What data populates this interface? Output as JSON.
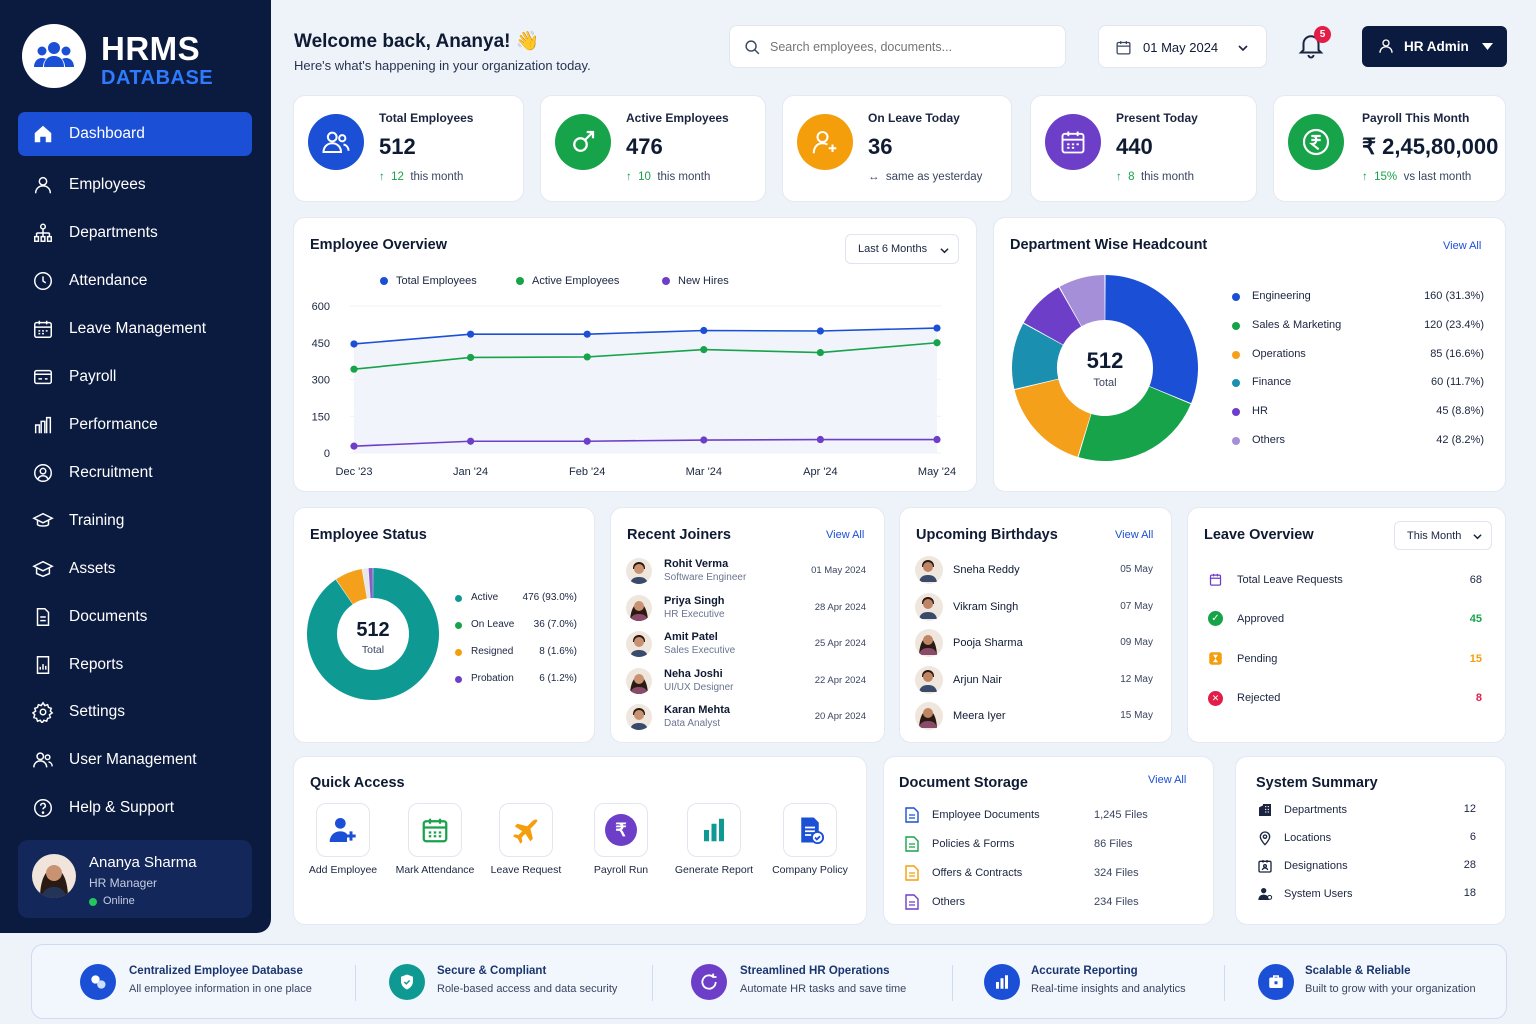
{
  "brand": {
    "title": "HRMS",
    "subtitle": "DATABASE"
  },
  "sidebar": {
    "items": [
      {
        "label": "Dashboard"
      },
      {
        "label": "Employees"
      },
      {
        "label": "Departments"
      },
      {
        "label": "Attendance"
      },
      {
        "label": "Leave Management"
      },
      {
        "label": "Payroll"
      },
      {
        "label": "Performance"
      },
      {
        "label": "Recruitment"
      },
      {
        "label": "Training"
      },
      {
        "label": "Assets"
      },
      {
        "label": "Documents"
      },
      {
        "label": "Reports"
      },
      {
        "label": "Settings"
      },
      {
        "label": "User Management"
      },
      {
        "label": "Help & Support"
      }
    ],
    "profile": {
      "name": "Ananya Sharma",
      "role": "HR Manager",
      "status": "Online"
    }
  },
  "header": {
    "welcome": "Welcome back, Ananya! 👋",
    "subtitle": "Here's what's happening in your organization today.",
    "search_placeholder": "Search employees, documents...",
    "date": "01 May 2024",
    "notifications": "5",
    "user": "HR Admin"
  },
  "stats": [
    {
      "title": "Total Employees",
      "value": "512",
      "delta": "12",
      "note": "this month",
      "color": "#1a4fd6"
    },
    {
      "title": "Active Employees",
      "value": "476",
      "delta": "10",
      "note": "this month",
      "color": "#17a34a"
    },
    {
      "title": "On Leave Today",
      "value": "36",
      "delta": "",
      "note": "same as yesterday",
      "color": "#f59e0b"
    },
    {
      "title": "Present Today",
      "value": "440",
      "delta": "8",
      "note": "this month",
      "color": "#6d3fc9"
    },
    {
      "title": "Payroll This Month",
      "value": "₹ 2,45,80,000",
      "delta": "15%",
      "note": "vs last month",
      "color": "#17a34a"
    }
  ],
  "overview": {
    "title": "Employee Overview",
    "range": "Last 6 Months",
    "legend": [
      "Total Employees",
      "Active Employees",
      "New Hires"
    ]
  },
  "chart_data": [
    {
      "type": "line",
      "title": "Employee Overview",
      "x": [
        "Dec '23",
        "Jan '24",
        "Feb '24",
        "Mar '24",
        "Apr '24",
        "May '24"
      ],
      "ylim": [
        0,
        600
      ],
      "yticks": [
        "600",
        "450",
        "300",
        "150",
        "0"
      ],
      "series": [
        {
          "name": "Total Employees",
          "values": [
            445,
            485,
            485,
            500,
            498,
            510
          ],
          "color": "#1a4fd6"
        },
        {
          "name": "Active Employees",
          "values": [
            342,
            390,
            392,
            422,
            410,
            450
          ],
          "color": "#17a34a"
        },
        {
          "name": "New Hires",
          "values": [
            28,
            48,
            48,
            53,
            55,
            55
          ],
          "color": "#6d3fc9"
        }
      ]
    },
    {
      "type": "pie",
      "title": "Department Wise Headcount",
      "total": "512",
      "total_label": "Total",
      "labels": [
        "Engineering",
        "Sales & Marketing",
        "Operations",
        "Finance",
        "HR",
        "Others"
      ],
      "values": [
        160,
        120,
        85,
        60,
        45,
        42
      ],
      "display": [
        "160 (31.3%)",
        "120 (23.4%)",
        "85 (16.6%)",
        "60 (11.7%)",
        "45 (8.8%)",
        "42 (8.2%)"
      ],
      "colors": [
        "#1a4fd6",
        "#17a34a",
        "#f5a01a",
        "#1a8fb0",
        "#6d3fc9",
        "#a58fd8"
      ]
    },
    {
      "type": "pie",
      "title": "Employee Status",
      "total": "512",
      "total_label": "Total",
      "labels": [
        "Active",
        "On Leave",
        "Resigned",
        "Probation"
      ],
      "values": [
        476,
        36,
        8,
        6
      ],
      "display": [
        "476 (93.0%)",
        "36 (7.0%)",
        "8 (1.6%)",
        "6 (1.2%)"
      ],
      "colors": [
        "#0e9a93",
        "#f5a01a",
        "#e5e7eb",
        "#8b5cc9"
      ]
    }
  ],
  "dept": {
    "title": "Department Wise Headcount",
    "view_all": "View All"
  },
  "status": {
    "title": "Employee Status"
  },
  "joiners": {
    "title": "Recent Joiners",
    "view_all": "View All",
    "items": [
      {
        "name": "Rohit Verma",
        "role": "Software Engineer",
        "date": "01 May 2024"
      },
      {
        "name": "Priya Singh",
        "role": "HR Executive",
        "date": "28 Apr 2024"
      },
      {
        "name": "Amit Patel",
        "role": "Sales Executive",
        "date": "25 Apr 2024"
      },
      {
        "name": "Neha Joshi",
        "role": "UI/UX Designer",
        "date": "22 Apr 2024"
      },
      {
        "name": "Karan Mehta",
        "role": "Data Analyst",
        "date": "20 Apr 2024"
      }
    ]
  },
  "birthdays": {
    "title": "Upcoming Birthdays",
    "view_all": "View All",
    "items": [
      {
        "name": "Sneha Reddy",
        "date": "05 May"
      },
      {
        "name": "Vikram Singh",
        "date": "07 May"
      },
      {
        "name": "Pooja Sharma",
        "date": "09 May"
      },
      {
        "name": "Arjun Nair",
        "date": "12 May"
      },
      {
        "name": "Meera Iyer",
        "date": "15 May"
      }
    ]
  },
  "leave": {
    "title": "Leave Overview",
    "range": "This Month",
    "items": [
      {
        "label": "Total Leave Requests",
        "value": "68",
        "color": "#0f1a33"
      },
      {
        "label": "Approved",
        "value": "45",
        "color": "#17a34a"
      },
      {
        "label": "Pending",
        "value": "15",
        "color": "#f59e0b"
      },
      {
        "label": "Rejected",
        "value": "8",
        "color": "#e11d48"
      }
    ]
  },
  "quick": {
    "title": "Quick Access",
    "items": [
      {
        "label": "Add Employee"
      },
      {
        "label": "Mark Attendance"
      },
      {
        "label": "Leave Request"
      },
      {
        "label": "Payroll Run"
      },
      {
        "label": "Generate Report"
      },
      {
        "label": "Company Policy"
      }
    ]
  },
  "storage": {
    "title": "Document Storage",
    "view_all": "View All",
    "items": [
      {
        "label": "Employee Documents",
        "value": "1,245 Files"
      },
      {
        "label": "Policies & Forms",
        "value": "86 Files"
      },
      {
        "label": "Offers & Contracts",
        "value": "324 Files"
      },
      {
        "label": "Others",
        "value": "234 Files"
      }
    ]
  },
  "summary": {
    "title": "System Summary",
    "items": [
      {
        "label": "Departments",
        "value": "12"
      },
      {
        "label": "Locations",
        "value": "6"
      },
      {
        "label": "Designations",
        "value": "28"
      },
      {
        "label": "System Users",
        "value": "18"
      }
    ]
  },
  "features": [
    {
      "title": "Centralized Employee Database",
      "sub": "All employee information in one place"
    },
    {
      "title": "Secure & Compliant",
      "sub": "Role-based access and data security"
    },
    {
      "title": "Streamlined HR Operations",
      "sub": "Automate HR tasks and save time"
    },
    {
      "title": "Accurate Reporting",
      "sub": "Real-time insights and analytics"
    },
    {
      "title": "Scalable & Reliable",
      "sub": "Built to grow with your organization"
    }
  ]
}
